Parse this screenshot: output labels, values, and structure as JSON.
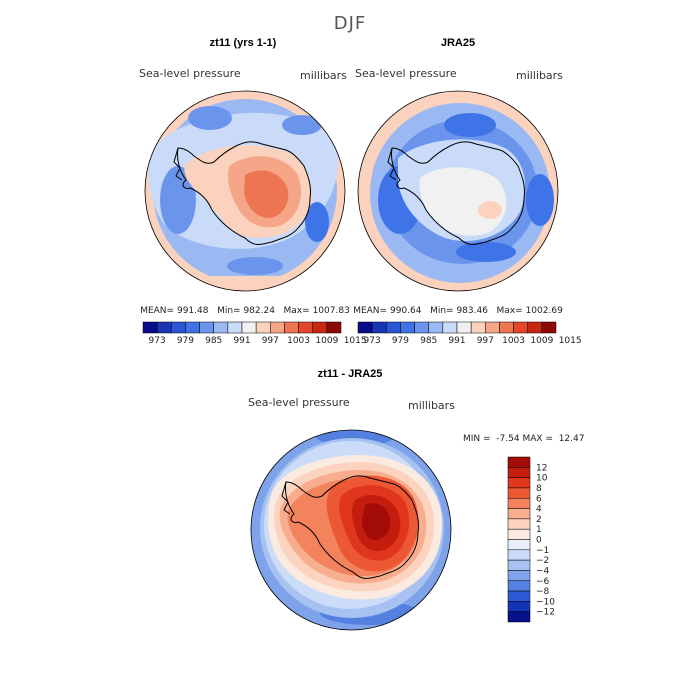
{
  "page_title": "DJF",
  "chart_data": [
    {
      "type": "heatmap",
      "projection": "south-polar-stereographic",
      "title": "zt11 (yrs 1-1)",
      "variable_label": "Sea-level pressure",
      "units_label": "millibars",
      "stats": {
        "mean": "991.48",
        "min": "982.24",
        "max": "1007.83"
      },
      "stats_labels": {
        "mean": "MEAN=",
        "min": "Min=",
        "max": "Max="
      },
      "colorbar_ticks": [
        "973",
        "979",
        "985",
        "991",
        "997",
        "1003",
        "1009",
        "1015"
      ],
      "colorbar_colors": [
        "#0a0a8c",
        "#1a35b4",
        "#2a55d6",
        "#3f74e8",
        "#6b95ec",
        "#9ab8f2",
        "#c9dbf8",
        "#f1f1f1",
        "#fbd2bd",
        "#f6a688",
        "#ee7551",
        "#e4462c",
        "#c62814",
        "#8e0a04"
      ]
    },
    {
      "type": "heatmap",
      "projection": "south-polar-stereographic",
      "title": "JRA25",
      "variable_label": "Sea-level pressure",
      "units_label": "millibars",
      "stats": {
        "mean": "990.64",
        "min": "983.46",
        "max": "1002.69"
      },
      "stats_labels": {
        "mean": "MEAN=",
        "min": "Min=",
        "max": "Max="
      },
      "colorbar_ticks": [
        "973",
        "979",
        "985",
        "991",
        "997",
        "1003",
        "1009",
        "1015"
      ],
      "colorbar_colors": [
        "#0a0a8c",
        "#1a35b4",
        "#2a55d6",
        "#3f74e8",
        "#6b95ec",
        "#9ab8f2",
        "#c9dbf8",
        "#f1f1f1",
        "#fbd2bd",
        "#f6a688",
        "#ee7551",
        "#e4462c",
        "#c62814",
        "#8e0a04"
      ]
    },
    {
      "type": "heatmap",
      "projection": "south-polar-stereographic",
      "title": "zt11 - JRA25",
      "variable_label": "Sea-level pressure",
      "units_label": "millibars",
      "range_text": {
        "min_label": "MIN =",
        "min": "-7.54",
        "max_label": "MAX =",
        "max": "12.47"
      },
      "colorbar_ticks": [
        "12",
        "10",
        "8",
        "6",
        "4",
        "2",
        "1",
        "0",
        "−1",
        "−2",
        "−4",
        "−6",
        "−8",
        "−10",
        "−12"
      ],
      "colorbar_colors": [
        "#a30c06",
        "#c41d0e",
        "#e0361d",
        "#ec5834",
        "#f2835c",
        "#f7ad8e",
        "#fbd3bf",
        "#fbeae0",
        "#eaf0fb",
        "#cadcf7",
        "#a7c2f1",
        "#7ea3ea",
        "#5580e0",
        "#2d5ad4",
        "#1434b8",
        "#06108a"
      ]
    }
  ]
}
